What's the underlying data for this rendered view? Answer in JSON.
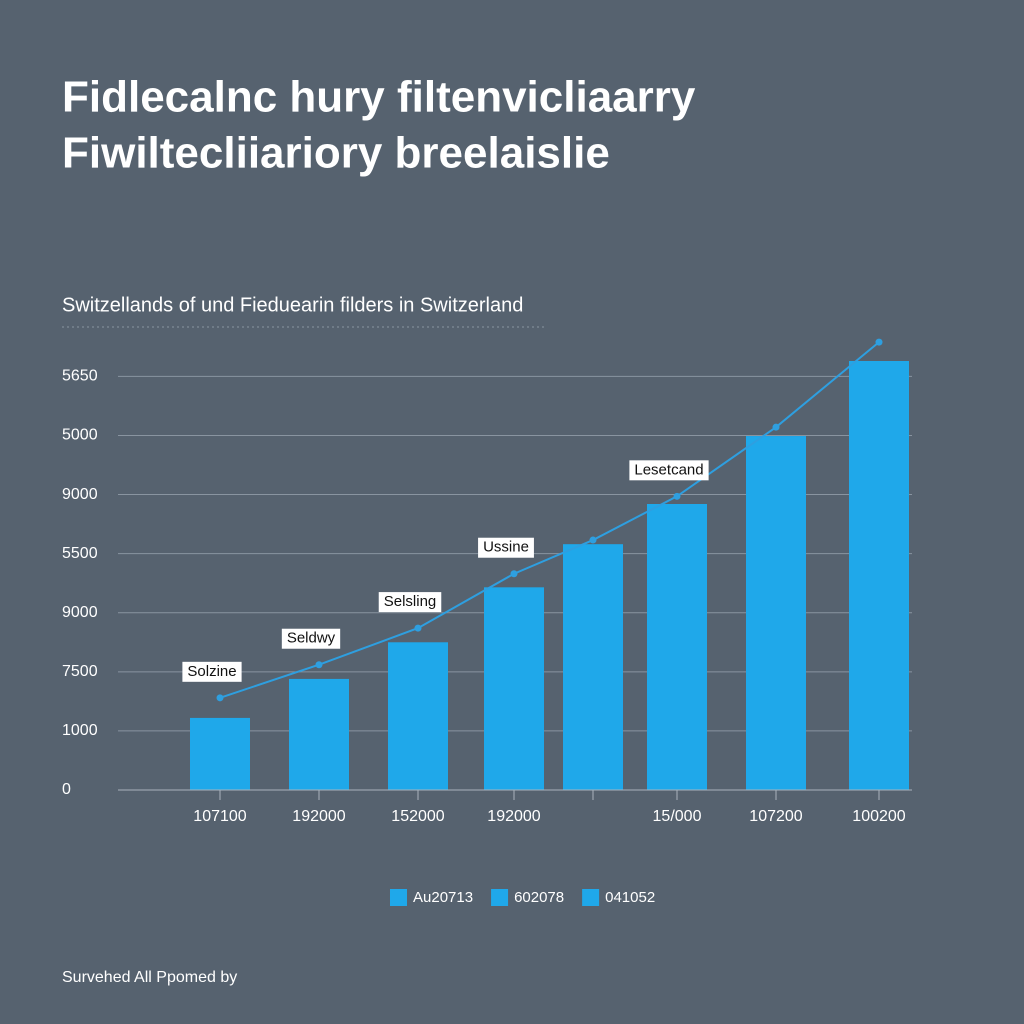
{
  "chart_data": {
    "type": "bar",
    "title": [
      "Fidlecalnc hury filtenvicliaarry",
      "Fiwiltecliiariory breelaislie"
    ],
    "subtitle": "Switzellands of und Fieduearin filders in Switzerland",
    "footer": "Survehed All Ppomed by",
    "categories": [
      "107100",
      "192000",
      "152000",
      "192000",
      null,
      "15/000",
      "107200",
      "100200"
    ],
    "series": [
      {
        "type": "bar",
        "color": "#1fa8ea",
        "values": [
          1.22,
          1.88,
          2.5,
          3.43,
          4.16,
          4.84,
          5.99,
          7.26
        ]
      },
      {
        "type": "line",
        "color": "#2e9fe0",
        "values": [
          1.56,
          2.12,
          2.74,
          3.66,
          4.23,
          4.97,
          6.14,
          7.58
        ],
        "annotations": [
          "Solzine",
          "Seldwy",
          "Selsling",
          "Ussine",
          null,
          "Lesetcand",
          null,
          null
        ]
      }
    ],
    "legend": [
      {
        "name": "Au20713",
        "color": "#1fa8ea"
      },
      {
        "name": "602078",
        "color": "#1fa8ea"
      },
      {
        "name": "041052",
        "color": "#1fa8ea"
      }
    ],
    "ylim": [
      0,
      7.7
    ],
    "yticks": [
      {
        "value": 0,
        "label": "0"
      },
      {
        "value": 1,
        "label": "1000"
      },
      {
        "value": 2,
        "label": "7500"
      },
      {
        "value": 3,
        "label": "9000"
      },
      {
        "value": 4,
        "label": "5500"
      },
      {
        "value": 5,
        "label": "9000"
      },
      {
        "value": 6,
        "label": "5000"
      },
      {
        "value": 7,
        "label": "5650"
      }
    ],
    "grid": true
  }
}
